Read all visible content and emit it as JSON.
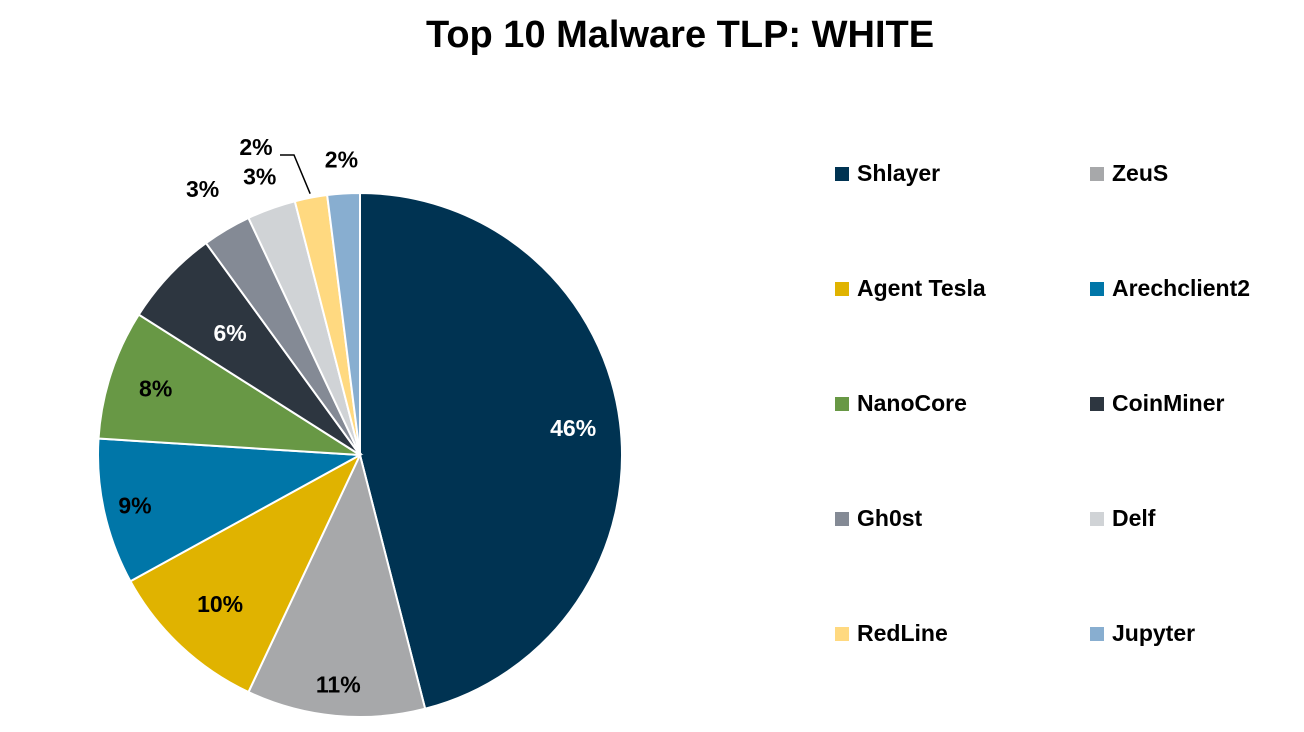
{
  "chart_data": {
    "type": "pie",
    "title": "Top 10 Malware TLP: WHITE",
    "legend_placement": "right",
    "slices": [
      {
        "label": "Shlayer",
        "value": 46,
        "data_label": "46%",
        "color": "#003352"
      },
      {
        "label": "ZeuS",
        "value": 11,
        "data_label": "11%",
        "color": "#A7A8AA"
      },
      {
        "label": "Agent Tesla",
        "value": 10,
        "data_label": "10%",
        "color": "#E0B300"
      },
      {
        "label": "Arechclient2",
        "value": 9,
        "data_label": "9%",
        "color": "#0076A8"
      },
      {
        "label": "NanoCore",
        "value": 8,
        "data_label": "8%",
        "color": "#689845"
      },
      {
        "label": "CoinMiner",
        "value": 6,
        "data_label": "6%",
        "color": "#2D3640"
      },
      {
        "label": "Gh0st",
        "value": 3,
        "data_label": "3%",
        "color": "#848A95"
      },
      {
        "label": "Delf",
        "value": 3,
        "data_label": "3%",
        "color": "#D0D3D6"
      },
      {
        "label": "RedLine",
        "value": 2,
        "data_label": "2%",
        "color": "#FFD980"
      },
      {
        "label": "Jupyter",
        "value": 2,
        "data_label": "2%",
        "color": "#88AED0"
      }
    ]
  }
}
